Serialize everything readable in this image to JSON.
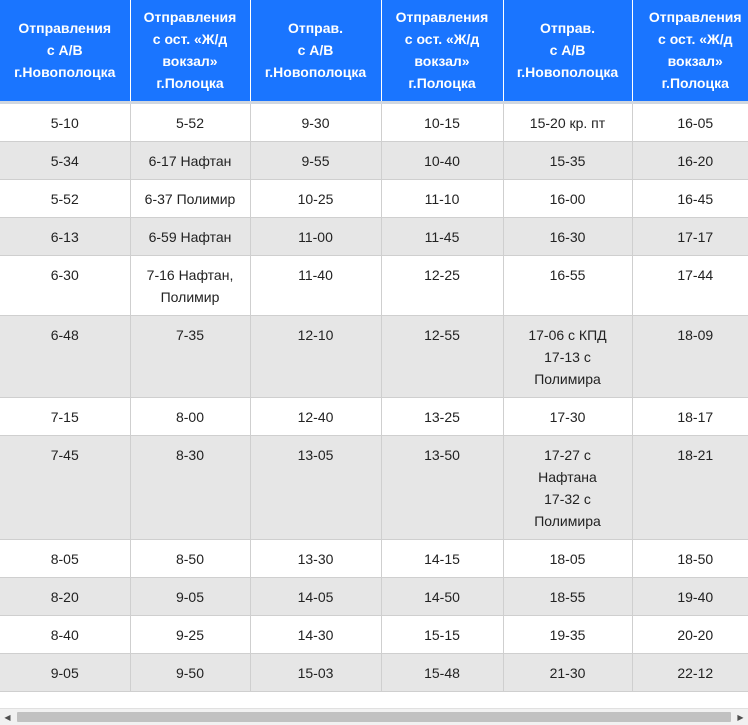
{
  "table": {
    "headers": [
      [
        "Отправления",
        "с А/В",
        "г.Новополоцка"
      ],
      [
        "Отправления",
        "с ост. «Ж/д",
        "вокзал»",
        "г.Полоцка"
      ],
      [
        "Отправ.",
        "с А/В",
        "г.Новополоцка"
      ],
      [
        "Отправления",
        "с ост. «Ж/д",
        "вокзал»",
        "г.Полоцка"
      ],
      [
        "Отправ.",
        "с А/В",
        "г.Новополоцка"
      ],
      [
        "Отправления",
        "с ост. «Ж/д",
        "вокзал»",
        "г.Полоцка"
      ]
    ],
    "rows": [
      [
        [
          "5-10"
        ],
        [
          "5-52"
        ],
        [
          "9-30"
        ],
        [
          "10-15"
        ],
        [
          "15-20 кр. пт"
        ],
        [
          "16-05"
        ]
      ],
      [
        [
          "5-34"
        ],
        [
          "6-17 Нафтан"
        ],
        [
          "9-55"
        ],
        [
          "10-40"
        ],
        [
          "15-35"
        ],
        [
          "16-20"
        ]
      ],
      [
        [
          "5-52"
        ],
        [
          "6-37 Полимир"
        ],
        [
          "10-25"
        ],
        [
          "11-10"
        ],
        [
          "16-00"
        ],
        [
          "16-45"
        ]
      ],
      [
        [
          "6-13"
        ],
        [
          "6-59 Нафтан"
        ],
        [
          "11-00"
        ],
        [
          "11-45"
        ],
        [
          "16-30"
        ],
        [
          "17-17"
        ]
      ],
      [
        [
          "6-30"
        ],
        [
          "7-16 Нафтан,",
          "Полимир"
        ],
        [
          "11-40"
        ],
        [
          "12-25"
        ],
        [
          "16-55"
        ],
        [
          "17-44"
        ]
      ],
      [
        [
          "6-48"
        ],
        [
          "7-35"
        ],
        [
          "12-10"
        ],
        [
          "12-55"
        ],
        [
          "17-06 с КПД",
          "17-13 с",
          "Полимира"
        ],
        [
          "18-09"
        ]
      ],
      [
        [
          "7-15"
        ],
        [
          "8-00"
        ],
        [
          "12-40"
        ],
        [
          "13-25"
        ],
        [
          "17-30"
        ],
        [
          "18-17"
        ]
      ],
      [
        [
          "7-45"
        ],
        [
          "8-30"
        ],
        [
          "13-05"
        ],
        [
          "13-50"
        ],
        [
          "17-27 с",
          "Нафтана",
          "17-32 с",
          "Полимира"
        ],
        [
          "18-21"
        ]
      ],
      [
        [
          "8-05"
        ],
        [
          "8-50"
        ],
        [
          "13-30"
        ],
        [
          "14-15"
        ],
        [
          "18-05"
        ],
        [
          "18-50"
        ]
      ],
      [
        [
          "8-20"
        ],
        [
          "9-05"
        ],
        [
          "14-05"
        ],
        [
          "14-50"
        ],
        [
          "18-55"
        ],
        [
          "19-40"
        ]
      ],
      [
        [
          "8-40"
        ],
        [
          "9-25"
        ],
        [
          "14-30"
        ],
        [
          "15-15"
        ],
        [
          "19-35"
        ],
        [
          "20-20"
        ]
      ],
      [
        [
          "9-05"
        ],
        [
          "9-50"
        ],
        [
          "15-03"
        ],
        [
          "15-48"
        ],
        [
          "21-30"
        ],
        [
          "22-12"
        ]
      ]
    ]
  },
  "scrollbar": {
    "left_icon": "arrow-left-icon",
    "right_icon": "arrow-right-icon",
    "left_glyph": "◀",
    "right_glyph": "▶"
  },
  "colors": {
    "header_bg": "#1a75ff",
    "header_text": "#ffffff",
    "row_alt_bg": "#e6e6e6",
    "row_bg": "#ffffff",
    "grid": "#cfcfcf"
  }
}
